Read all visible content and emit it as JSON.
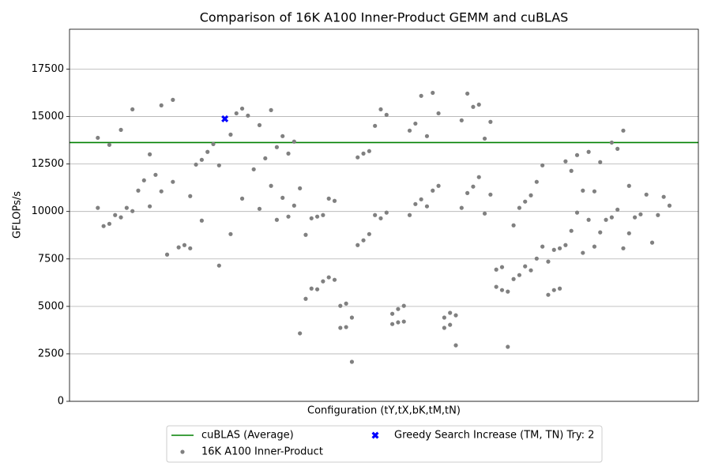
{
  "chart_data": {
    "type": "scatter",
    "title": "Comparison of 16K A100 Inner-Product GEMM and cuBLAS",
    "x_label": "Configuration (tY,tX,bK,tM,tN)",
    "y_label": "GFLOPs/s",
    "xlim": [
      -4.9,
      104
    ],
    "ylim": [
      0,
      19600
    ],
    "yticks": [
      0,
      2500,
      5000,
      7500,
      10000,
      12500,
      15000,
      17500
    ],
    "grid": "y",
    "legend": "lower center outside",
    "series": [
      {
        "name": "cuBLAS (Average)",
        "type": "hline",
        "color": "#008000",
        "values": [
          13630
        ]
      },
      {
        "name": "16K A100 Inner-Product",
        "type": "scatter",
        "marker": "circle",
        "color": "#808080",
        "x": [
          0,
          0,
          1,
          2,
          2,
          3,
          4,
          4,
          5,
          6,
          6,
          7,
          8,
          9,
          9,
          10,
          11,
          11,
          12,
          13,
          13,
          14,
          15,
          16,
          16,
          17,
          18,
          18,
          19,
          20,
          21,
          21,
          23,
          23,
          24,
          25,
          25,
          26,
          27,
          28,
          28,
          29,
          30,
          30,
          31,
          31,
          32,
          32,
          33,
          33,
          34,
          34,
          35,
          35,
          36,
          36,
          37,
          37,
          38,
          38,
          39,
          39,
          40,
          40,
          41,
          41,
          42,
          42,
          43,
          43,
          44,
          44,
          45,
          45,
          46,
          46,
          47,
          47,
          48,
          48,
          49,
          49,
          50,
          50,
          51,
          51,
          52,
          52,
          53,
          53,
          54,
          54,
          55,
          55,
          56,
          56,
          57,
          57,
          58,
          58,
          59,
          59,
          60,
          60,
          61,
          61,
          62,
          62,
          63,
          63,
          64,
          64,
          65,
          65,
          66,
          66,
          67,
          67,
          68,
          68,
          69,
          69,
          70,
          70,
          71,
          71,
          72,
          72,
          73,
          73,
          74,
          74,
          75,
          75,
          76,
          76,
          77,
          77,
          78,
          78,
          79,
          79,
          80,
          80,
          81,
          81,
          82,
          82,
          83,
          83,
          84,
          84,
          85,
          85,
          86,
          86,
          87,
          87,
          88,
          89,
          89,
          90,
          90,
          91,
          91,
          92,
          92,
          93,
          94,
          95,
          96,
          97,
          98,
          99
        ],
        "values": [
          13880,
          10190,
          9230,
          13510,
          9350,
          9810,
          14300,
          9690,
          10190,
          15380,
          10020,
          11100,
          11640,
          13010,
          10270,
          11930,
          15590,
          11060,
          7730,
          15880,
          11560,
          8110,
          8230,
          8060,
          10810,
          12470,
          12720,
          9520,
          13140,
          13550,
          12430,
          7150,
          14050,
          8810,
          15170,
          15420,
          10680,
          15050,
          12220,
          14550,
          10140,
          12800,
          15340,
          11350,
          13390,
          9560,
          13970,
          10720,
          13050,
          9730,
          13680,
          10310,
          11220,
          3580,
          8770,
          5400,
          9640,
          5940,
          9730,
          5900,
          9810,
          6320,
          10680,
          6530,
          10560,
          6400,
          5030,
          3870,
          5150,
          3910,
          4410,
          2080,
          12850,
          8230,
          13050,
          8480,
          13180,
          8810,
          14510,
          9810,
          15380,
          9640,
          15090,
          9940,
          4610,
          4070,
          4860,
          4160,
          5030,
          4200,
          14260,
          9810,
          14630,
          10390,
          16090,
          10640,
          13970,
          10270,
          16250,
          11100,
          15170,
          11350,
          4410,
          3870,
          4660,
          4030,
          4530,
          2950,
          14800,
          10190,
          16210,
          10970,
          15510,
          11310,
          15630,
          11810,
          13840,
          9890,
          14720,
          10890,
          6940,
          6030,
          7070,
          5860,
          5780,
          2870,
          9270,
          6440,
          10190,
          6650,
          10520,
          7110,
          10850,
          6900,
          11560,
          7520,
          12430,
          8150,
          7360,
          5610,
          7980,
          5860,
          8060,
          5940,
          12640,
          8230,
          12140,
          8980,
          12970,
          9940,
          11100,
          7820,
          13140,
          9560,
          11060,
          8150,
          12600,
          8900,
          9560,
          13630,
          9690,
          13300,
          10100,
          14260,
          8060,
          11350,
          8850,
          9690,
          9850,
          10890,
          8360,
          9810,
          10770,
          10310
        ]
      },
      {
        "name": "Greedy Search Increase (TM, TN) Try: 2",
        "type": "scatter",
        "marker": "x",
        "color": "#0000ff",
        "x": [
          22
        ],
        "values": [
          14880
        ]
      }
    ]
  }
}
